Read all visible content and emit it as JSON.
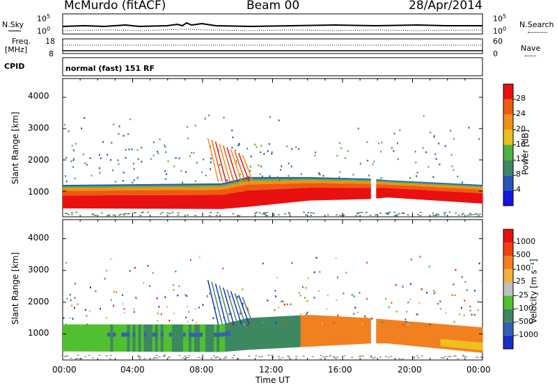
{
  "header": {
    "station": "McMurdo (fitACF)",
    "beam": "Beam 00",
    "date": "28/Apr/2014"
  },
  "noise_panel": {
    "left_label": "N.Sky",
    "right_label": "N.Search",
    "top_tick": "10^5",
    "bottom_tick": "10^0"
  },
  "freq_panel": {
    "left_label_line1": "Freq.",
    "left_label_line2": "[MHz]",
    "left_ticks": [
      "18",
      "8"
    ],
    "right_label": "Nave",
    "right_ticks": [
      "60",
      "0"
    ]
  },
  "cpid_panel": {
    "label": "CPID",
    "text": "normal (fast) 151 RF"
  },
  "chart_data": [
    {
      "type": "heatmap",
      "title": "Power",
      "ylabel": "Slant Range [km]",
      "ylim": [
        180,
        4600
      ],
      "yticks": [
        "1000",
        "2000",
        "3000",
        "4000"
      ],
      "xlim": [
        "00:00",
        "24:00"
      ],
      "colorbar_label": "Power [dB]",
      "colorbar_ticks": [
        "4",
        "8",
        "12",
        "16",
        "20",
        "24",
        "28"
      ],
      "colorbar_colors": [
        "#1515e0",
        "#2a55b8",
        "#3d8860",
        "#50b040",
        "#e8c020",
        "#f09018",
        "#f05a10",
        "#e81010"
      ],
      "summary_band_km": [
        {
          "x": 0,
          "lo": 450,
          "hi": 1200
        },
        {
          "x": 9,
          "lo": 430,
          "hi": 1250
        },
        {
          "x": 10.5,
          "lo": 500,
          "hi": 1450
        },
        {
          "x": 14,
          "lo": 700,
          "hi": 1450
        },
        {
          "x": 17.5,
          "lo": 750,
          "hi": 1400
        },
        {
          "x": 18.5,
          "lo": 800,
          "hi": 1350
        },
        {
          "x": 24,
          "lo": 600,
          "hi": 1200
        }
      ]
    },
    {
      "type": "heatmap",
      "title": "Velocity",
      "ylabel": "Slant Range [km]",
      "xlabel": "Time UT",
      "ylim": [
        180,
        4600
      ],
      "yticks": [
        "1000",
        "2000",
        "3000",
        "4000"
      ],
      "xticks": [
        "00:00",
        "04:00",
        "08:00",
        "12:00",
        "16:00",
        "20:00",
        "00:00"
      ],
      "colorbar_label": "Velocity [m s⁻¹]",
      "colorbar_ticks": [
        "1000",
        "500",
        "100",
        "25",
        "-25",
        "-100",
        "-500",
        "-1000"
      ],
      "colorbar_colors": [
        "#1a2ec8",
        "#3860b0",
        "#3d8860",
        "#50c030",
        "#c0c0c0",
        "#f0b040",
        "#f08020",
        "#f04010",
        "#e81010"
      ],
      "summary_band_km": [
        {
          "x": 0,
          "lo": 450,
          "hi": 1300
        },
        {
          "x": 9,
          "lo": 430,
          "hi": 1300
        },
        {
          "x": 10.5,
          "lo": 500,
          "hi": 1500
        },
        {
          "x": 14,
          "lo": 600,
          "hi": 1600
        },
        {
          "x": 17.5,
          "lo": 700,
          "hi": 1500
        },
        {
          "x": 18.5,
          "lo": 700,
          "hi": 1450
        },
        {
          "x": 24,
          "lo": 400,
          "hi": 1200
        }
      ]
    }
  ]
}
